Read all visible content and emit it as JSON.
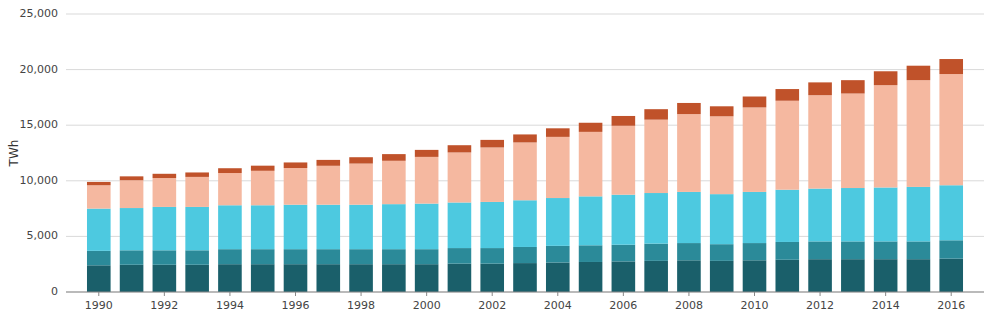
{
  "chart_data": {
    "type": "bar",
    "stacked": true,
    "grid": true,
    "ylabel": "TWh",
    "x": [
      1990,
      1991,
      1992,
      1993,
      1994,
      1995,
      1996,
      1997,
      1998,
      1999,
      2000,
      2001,
      2002,
      2003,
      2004,
      2005,
      2006,
      2007,
      2008,
      2009,
      2010,
      2011,
      2012,
      2013,
      2014,
      2015,
      2016
    ],
    "xlim": [
      1989,
      2017
    ],
    "xticks": [
      1990,
      1992,
      1994,
      1996,
      1998,
      2000,
      2002,
      2004,
      2006,
      2008,
      2010,
      2012,
      2014,
      2016
    ],
    "ylim": [
      0,
      25000
    ],
    "yticks": [
      0,
      {
        "value": 5000,
        "label": "5,000"
      },
      {
        "value": 10000,
        "label": "10,000"
      },
      {
        "value": 15000,
        "label": "15,000"
      },
      {
        "value": 20000,
        "label": "20,000"
      },
      {
        "value": 25000,
        "label": "25,000"
      }
    ],
    "series": [
      {
        "color": "#1a5f6a",
        "values": [
          2400,
          2450,
          2450,
          2450,
          2500,
          2500,
          2500,
          2500,
          2500,
          2500,
          2500,
          2550,
          2550,
          2600,
          2650,
          2700,
          2750,
          2800,
          2850,
          2800,
          2850,
          2900,
          2950,
          2950,
          2950,
          2950,
          3000
        ]
      },
      {
        "color": "#2b8a99",
        "values": [
          1300,
          1300,
          1300,
          1300,
          1350,
          1350,
          1350,
          1350,
          1350,
          1350,
          1350,
          1400,
          1400,
          1450,
          1500,
          1500,
          1500,
          1550,
          1550,
          1500,
          1550,
          1600,
          1600,
          1600,
          1600,
          1600,
          1650
        ]
      },
      {
        "color": "#4dc9e0",
        "values": [
          3800,
          3800,
          3900,
          3900,
          3950,
          3950,
          4000,
          4000,
          4000,
          4050,
          4100,
          4100,
          4150,
          4200,
          4300,
          4400,
          4500,
          4550,
          4600,
          4500,
          4600,
          4700,
          4750,
          4800,
          4850,
          4900,
          4950
        ]
      },
      {
        "color": "#f5b8a0",
        "values": [
          2100,
          2500,
          2600,
          2700,
          2900,
          3100,
          3300,
          3500,
          3700,
          3900,
          4200,
          4500,
          4900,
          5200,
          5500,
          5800,
          6200,
          6600,
          7000,
          7000,
          7600,
          8000,
          8400,
          8500,
          9200,
          9600,
          10000
        ]
      },
      {
        "color": "#c0522a",
        "values": [
          300,
          350,
          380,
          400,
          430,
          460,
          500,
          530,
          570,
          600,
          630,
          650,
          680,
          720,
          770,
          820,
          880,
          940,
          1000,
          900,
          980,
          1050,
          1150,
          1200,
          1250,
          1300,
          1350
        ]
      }
    ]
  }
}
